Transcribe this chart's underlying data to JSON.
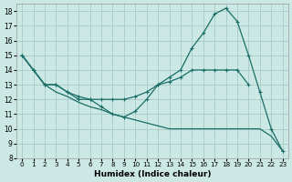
{
  "xlabel": "Humidex (Indice chaleur)",
  "background_color": "#cce8e4",
  "grid_color": "#aacfcb",
  "line_color": "#1a6e68",
  "xlim": [
    -0.5,
    23.5
  ],
  "ylim": [
    8,
    18.5
  ],
  "xticks": [
    0,
    1,
    2,
    3,
    4,
    5,
    6,
    7,
    8,
    9,
    10,
    11,
    12,
    13,
    14,
    15,
    16,
    17,
    18,
    19,
    20,
    21,
    22,
    23
  ],
  "yticks": [
    8,
    9,
    10,
    11,
    12,
    13,
    14,
    15,
    16,
    17,
    18
  ],
  "curve_peak_x": [
    0,
    1,
    2,
    3,
    4,
    5,
    6,
    7,
    8,
    9,
    10,
    11,
    12,
    13,
    14,
    15,
    16,
    17,
    18,
    19,
    20,
    21,
    22,
    23
  ],
  "curve_peak_y": [
    15,
    14,
    13,
    13,
    12.5,
    12,
    12,
    11.5,
    11,
    10.8,
    11.2,
    12,
    13,
    13.5,
    14,
    15.5,
    16.5,
    17.8,
    18.2,
    17.3,
    15,
    12.5,
    10,
    8.5
  ],
  "curve_mid_x": [
    0,
    1,
    2,
    3,
    4,
    5,
    6,
    7,
    8,
    9,
    10,
    11,
    12,
    13,
    14,
    15,
    16,
    17,
    18,
    19,
    20
  ],
  "curve_mid_y": [
    15,
    14,
    13,
    13,
    12.5,
    12.2,
    12,
    12,
    12,
    12,
    12.2,
    12.5,
    13,
    13.2,
    13.5,
    14,
    14,
    14,
    14,
    14,
    13
  ],
  "curve_low_x": [
    0,
    1,
    2,
    3,
    4,
    5,
    6,
    7,
    8,
    9,
    10,
    11,
    12,
    13,
    14,
    15,
    16,
    17,
    18,
    19,
    20,
    21,
    22,
    23
  ],
  "curve_low_y": [
    15,
    14,
    13,
    12.5,
    12.2,
    11.8,
    11.5,
    11.3,
    11,
    10.8,
    10.6,
    10.4,
    10.2,
    10,
    10,
    10,
    10,
    10,
    10,
    10,
    10,
    10,
    9.5,
    8.5
  ]
}
